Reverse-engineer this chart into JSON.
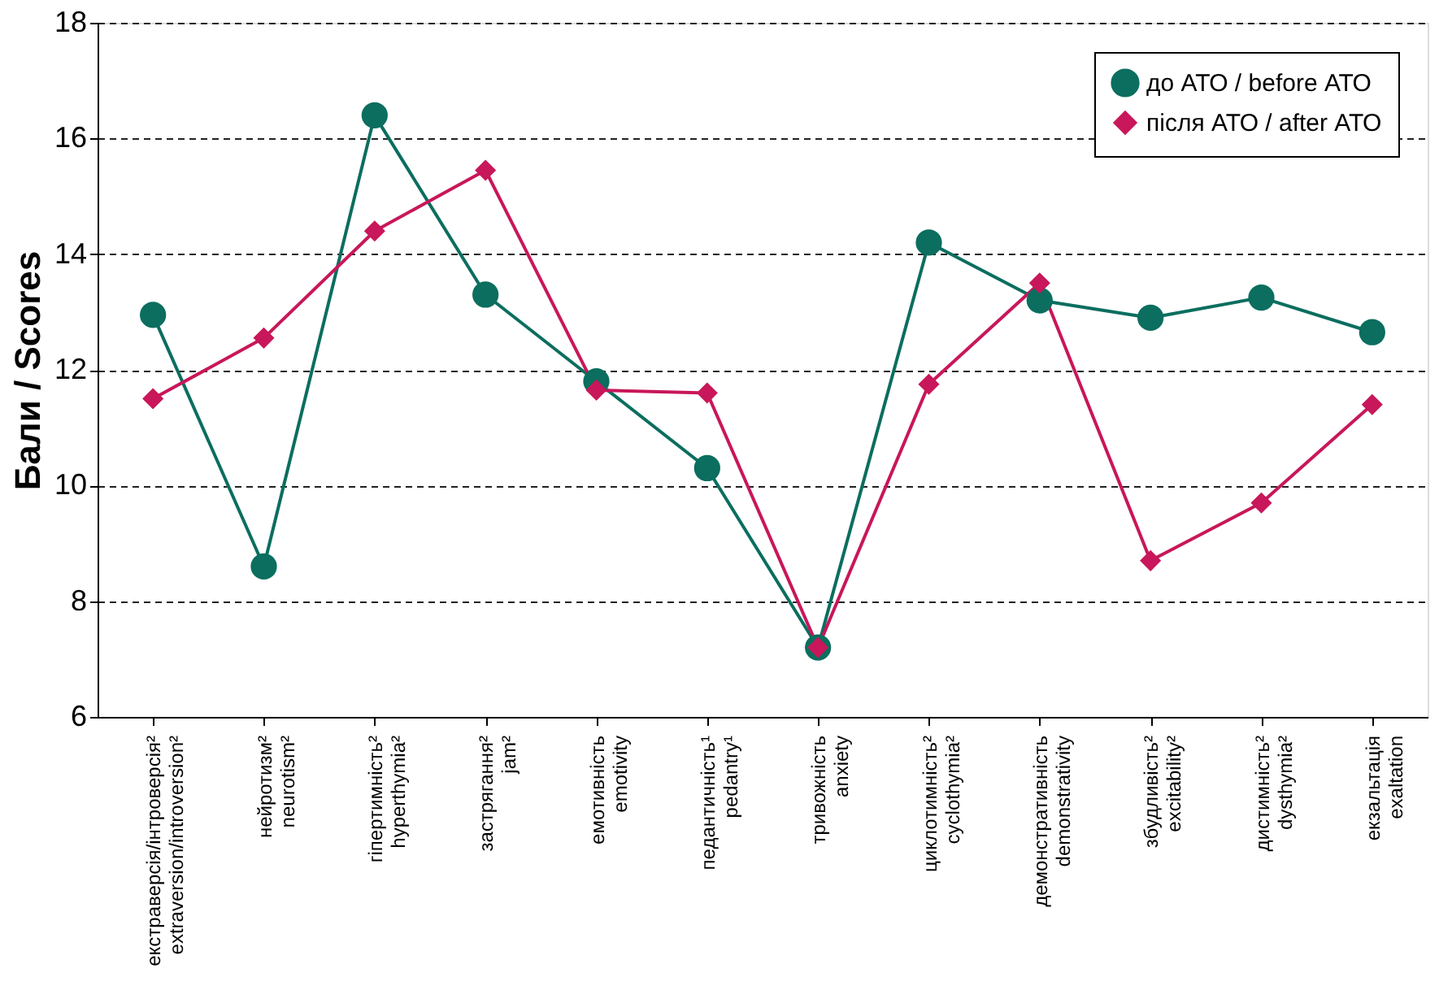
{
  "chart_data": {
    "type": "line",
    "ylabel": "Бали / Scores",
    "categories": [
      "екстраверсія/інтроверсія²\nextraversion/introversion²",
      "нейротизм²\nneurotism²",
      "гіпертимність²\nhyperthymia²",
      "застрягання²\njam²",
      "емотивність\nemotivity",
      "педантичність¹\npedantry¹",
      "тривожність\nanxiety",
      "циклотимність²\ncyclothymia²",
      "демонстративність\ndemonstrativity",
      "збудливість²\nexcitability²",
      "дистимність²\ndysthymia²",
      "екзальтація\nexaltation"
    ],
    "series": [
      {
        "name": "до АТО / before АТО",
        "color": "#0b6e5f",
        "marker": "circle",
        "values": [
          12.95,
          8.6,
          16.4,
          13.3,
          11.8,
          10.3,
          7.2,
          14.2,
          13.2,
          12.9,
          13.25,
          12.65
        ]
      },
      {
        "name": "після АТО / after АТО",
        "color": "#c8175a",
        "marker": "diamond",
        "values": [
          11.5,
          12.55,
          14.4,
          15.45,
          11.65,
          11.6,
          7.2,
          11.75,
          13.5,
          8.7,
          9.7,
          11.4
        ]
      }
    ],
    "ylim": [
      6,
      18
    ],
    "yticks": [
      6,
      8,
      10,
      12,
      14,
      16,
      18
    ],
    "grid": "y",
    "legend": "top right",
    "line_style": "solid"
  }
}
